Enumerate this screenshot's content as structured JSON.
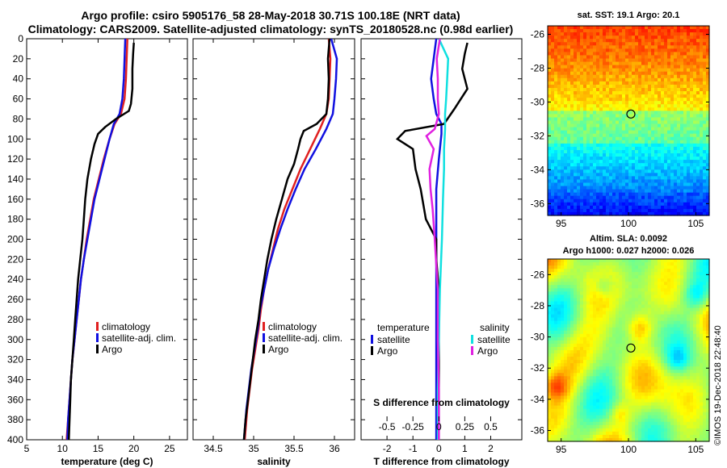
{
  "header": {
    "title_line1": "Argo profile: csiro 5905176_58 28-May-2018 30.71S 100.18E (NRT data)",
    "title_line2": "Climatology: CARS2009. Satellite-adjusted climatology: synTS_20180528.nc (0.98d earlier)"
  },
  "credit": "©IMOS 19-Dec-2018 22:48:40",
  "colors": {
    "climatology": "#e02020",
    "satellite": "#1010e0",
    "argo": "#000000",
    "sat_salinity": "#10e0e0",
    "argo_salinity": "#e020e0"
  },
  "chart_data": [
    {
      "type": "line",
      "id": "temperature",
      "xlabel": "temperature (deg C)",
      "ylabel": "",
      "xlim": [
        5,
        27.5
      ],
      "ylim": [
        400,
        0
      ],
      "xticks": [
        5,
        10,
        15,
        20,
        25
      ],
      "yticks": [
        0,
        20,
        40,
        60,
        80,
        100,
        120,
        140,
        160,
        180,
        200,
        220,
        240,
        260,
        280,
        300,
        320,
        340,
        360,
        380,
        400
      ],
      "legend": [
        "climatology",
        "satellite-adj. clim.",
        "Argo"
      ],
      "series": [
        {
          "name": "climatology",
          "color": "#e02020",
          "points": [
            [
              19.1,
              0
            ],
            [
              19.0,
              20
            ],
            [
              18.9,
              40
            ],
            [
              18.7,
              60
            ],
            [
              18.2,
              75
            ],
            [
              17.3,
              85
            ],
            [
              16.6,
              100
            ],
            [
              15.8,
              120
            ],
            [
              15.1,
              140
            ],
            [
              14.4,
              160
            ],
            [
              13.9,
              180
            ],
            [
              13.4,
              200
            ],
            [
              13.0,
              220
            ],
            [
              12.6,
              240
            ],
            [
              12.3,
              260
            ],
            [
              12.0,
              280
            ],
            [
              11.7,
              300
            ],
            [
              11.4,
              320
            ],
            [
              11.2,
              340
            ],
            [
              11.0,
              360
            ],
            [
              10.8,
              380
            ],
            [
              10.6,
              400
            ]
          ]
        },
        {
          "name": "satellite-adj. clim.",
          "color": "#1010e0",
          "points": [
            [
              18.8,
              0
            ],
            [
              18.7,
              20
            ],
            [
              18.6,
              40
            ],
            [
              18.4,
              60
            ],
            [
              18.0,
              75
            ],
            [
              17.2,
              85
            ],
            [
              16.6,
              100
            ],
            [
              15.9,
              120
            ],
            [
              15.2,
              140
            ],
            [
              14.5,
              160
            ],
            [
              14.0,
              180
            ],
            [
              13.5,
              200
            ],
            [
              13.0,
              220
            ],
            [
              12.6,
              240
            ],
            [
              12.3,
              260
            ],
            [
              12.0,
              280
            ],
            [
              11.7,
              300
            ],
            [
              11.4,
              320
            ],
            [
              11.2,
              340
            ],
            [
              11.0,
              360
            ],
            [
              10.8,
              380
            ],
            [
              10.7,
              400
            ]
          ]
        },
        {
          "name": "Argo",
          "color": "#000000",
          "points": [
            [
              20.0,
              4
            ],
            [
              19.9,
              15
            ],
            [
              19.8,
              30
            ],
            [
              19.8,
              50
            ],
            [
              19.6,
              65
            ],
            [
              19.3,
              72
            ],
            [
              17.5,
              80
            ],
            [
              16.0,
              88
            ],
            [
              15.0,
              95
            ],
            [
              14.5,
              105
            ],
            [
              14.0,
              120
            ],
            [
              13.5,
              140
            ],
            [
              13.2,
              160
            ],
            [
              13.0,
              180
            ],
            [
              12.8,
              200
            ],
            [
              12.5,
              220
            ],
            [
              12.2,
              240
            ],
            [
              12.0,
              260
            ],
            [
              11.8,
              280
            ],
            [
              11.6,
              300
            ],
            [
              11.4,
              320
            ],
            [
              11.2,
              340
            ],
            [
              11.1,
              360
            ],
            [
              11.0,
              380
            ],
            [
              10.9,
              400
            ]
          ]
        }
      ]
    },
    {
      "type": "line",
      "id": "salinity",
      "xlabel": "salinity",
      "ylabel": "",
      "xlim": [
        34.25,
        36.25
      ],
      "ylim": [
        400,
        0
      ],
      "xticks": [
        34.5,
        35,
        35.5,
        36
      ],
      "legend": [
        "climatology",
        "satellite-adj. clim.",
        "Argo"
      ],
      "series": [
        {
          "name": "climatology",
          "color": "#e02020",
          "points": [
            [
              35.93,
              0
            ],
            [
              35.95,
              20
            ],
            [
              35.94,
              40
            ],
            [
              35.93,
              60
            ],
            [
              35.9,
              75
            ],
            [
              35.82,
              90
            ],
            [
              35.7,
              110
            ],
            [
              35.58,
              130
            ],
            [
              35.48,
              150
            ],
            [
              35.38,
              170
            ],
            [
              35.3,
              190
            ],
            [
              35.24,
              210
            ],
            [
              35.18,
              230
            ],
            [
              35.13,
              250
            ],
            [
              35.09,
              270
            ],
            [
              35.06,
              290
            ],
            [
              35.02,
              310
            ],
            [
              34.98,
              330
            ],
            [
              34.95,
              350
            ],
            [
              34.92,
              370
            ],
            [
              34.89,
              400
            ]
          ]
        },
        {
          "name": "satellite-adj. clim.",
          "color": "#1010e0",
          "points": [
            [
              35.96,
              0
            ],
            [
              36.03,
              20
            ],
            [
              36.02,
              40
            ],
            [
              36.0,
              60
            ],
            [
              35.98,
              75
            ],
            [
              35.9,
              90
            ],
            [
              35.77,
              110
            ],
            [
              35.63,
              130
            ],
            [
              35.52,
              150
            ],
            [
              35.42,
              170
            ],
            [
              35.33,
              190
            ],
            [
              35.25,
              210
            ],
            [
              35.18,
              230
            ],
            [
              35.13,
              250
            ],
            [
              35.08,
              270
            ],
            [
              35.05,
              290
            ],
            [
              35.01,
              310
            ],
            [
              34.97,
              330
            ],
            [
              34.94,
              350
            ],
            [
              34.91,
              370
            ],
            [
              34.88,
              400
            ]
          ]
        },
        {
          "name": "Argo",
          "color": "#000000",
          "points": [
            [
              35.94,
              0
            ],
            [
              35.92,
              20
            ],
            [
              35.93,
              40
            ],
            [
              35.92,
              60
            ],
            [
              35.9,
              75
            ],
            [
              35.78,
              85
            ],
            [
              35.62,
              92
            ],
            [
              35.58,
              100
            ],
            [
              35.55,
              110
            ],
            [
              35.5,
              125
            ],
            [
              35.42,
              140
            ],
            [
              35.35,
              160
            ],
            [
              35.28,
              180
            ],
            [
              35.22,
              200
            ],
            [
              35.17,
              220
            ],
            [
              35.13,
              240
            ],
            [
              35.09,
              260
            ],
            [
              35.06,
              280
            ],
            [
              35.02,
              300
            ],
            [
              34.99,
              320
            ],
            [
              34.96,
              340
            ],
            [
              34.93,
              360
            ],
            [
              34.9,
              380
            ],
            [
              34.88,
              400
            ]
          ]
        }
      ]
    },
    {
      "type": "line",
      "id": "difference",
      "xlabel": "T difference from climatology",
      "x2label": "S difference from climatology",
      "xlim": [
        -3,
        3.2
      ],
      "x2lim": [
        -0.75,
        0.8
      ],
      "ylim": [
        400,
        0
      ],
      "xticks": [
        -2,
        -1,
        0,
        1,
        2
      ],
      "x2ticks": [
        -0.5,
        -0.25,
        0,
        0.25,
        0.5
      ],
      "x2ticklabels": [
        "-0.5",
        "-0.25",
        "0",
        "0.25",
        "0.5"
      ],
      "legend_temperature": {
        "title": "temperature",
        "items": [
          "satellite",
          "Argo"
        ]
      },
      "legend_salinity": {
        "title": "salinity",
        "items": [
          "satellite",
          "Argo"
        ]
      },
      "series": [
        {
          "name": "T satellite",
          "color": "#1010e0",
          "axis": "T",
          "points": [
            [
              -0.1,
              0
            ],
            [
              -0.2,
              20
            ],
            [
              -0.3,
              40
            ],
            [
              -0.2,
              60
            ],
            [
              -0.1,
              75
            ],
            [
              0.1,
              85
            ],
            [
              0.1,
              95
            ],
            [
              0.0,
              120
            ],
            [
              -0.1,
              150
            ],
            [
              -0.1,
              200
            ],
            [
              -0.1,
              250
            ],
            [
              -0.1,
              300
            ],
            [
              -0.1,
              350
            ],
            [
              -0.1,
              400
            ]
          ]
        },
        {
          "name": "T Argo",
          "color": "#000000",
          "axis": "T",
          "points": [
            [
              1.1,
              4
            ],
            [
              1.0,
              15
            ],
            [
              0.9,
              30
            ],
            [
              1.1,
              50
            ],
            [
              0.6,
              70
            ],
            [
              0.2,
              85
            ],
            [
              -1.3,
              92
            ],
            [
              -1.6,
              100
            ],
            [
              -1.0,
              110
            ],
            [
              -0.9,
              130
            ],
            [
              -0.7,
              150
            ],
            [
              -0.5,
              180
            ],
            [
              -0.1,
              200
            ],
            [
              -0.1,
              220
            ],
            [
              0.0,
              250
            ],
            [
              0.0,
              300
            ],
            [
              0.0,
              350
            ],
            [
              0.0,
              400
            ]
          ]
        },
        {
          "name": "S satellite",
          "color": "#10e0e0",
          "axis": "S",
          "points": [
            [
              0.0,
              0
            ],
            [
              0.09,
              20
            ],
            [
              0.08,
              40
            ],
            [
              0.07,
              60
            ],
            [
              0.06,
              75
            ],
            [
              0.06,
              90
            ],
            [
              0.05,
              110
            ],
            [
              0.05,
              130
            ],
            [
              0.04,
              160
            ],
            [
              0.03,
              200
            ],
            [
              0.01,
              250
            ],
            [
              0.0,
              300
            ],
            [
              -0.01,
              350
            ],
            [
              -0.01,
              400
            ]
          ]
        },
        {
          "name": "S Argo",
          "color": "#e020e0",
          "axis": "S",
          "points": [
            [
              0.01,
              0
            ],
            [
              -0.02,
              20
            ],
            [
              -0.01,
              40
            ],
            [
              -0.01,
              60
            ],
            [
              0.0,
              75
            ],
            [
              -0.04,
              90
            ],
            [
              -0.12,
              97
            ],
            [
              -0.05,
              110
            ],
            [
              -0.09,
              130
            ],
            [
              -0.08,
              150
            ],
            [
              -0.06,
              170
            ],
            [
              -0.04,
              200
            ],
            [
              -0.01,
              250
            ],
            [
              -0.01,
              300
            ],
            [
              0.0,
              350
            ],
            [
              0.0,
              400
            ]
          ]
        }
      ]
    },
    {
      "type": "heatmap",
      "id": "sst-map",
      "title": "sat. SST: 19.1 Argo: 20.1",
      "xlim": [
        94,
        106
      ],
      "ylim": [
        -36.7,
        -25.5
      ],
      "xticks": [
        95,
        100,
        105
      ],
      "yticks": [
        -26,
        -28,
        -30,
        -32,
        -34,
        -36
      ],
      "marker": {
        "lon": 100.18,
        "lat": -30.71
      }
    },
    {
      "type": "heatmap",
      "id": "sla-map",
      "title": "Altim. SLA: 0.0092",
      "subtitle": "Argo h1000: 0.027 h2000: 0.026",
      "xlim": [
        94,
        106
      ],
      "ylim": [
        -36.7,
        -25.0
      ],
      "xticks": [
        95,
        100,
        105
      ],
      "yticks": [
        -26,
        -28,
        -30,
        -32,
        -34,
        -36
      ],
      "marker": {
        "lon": 100.18,
        "lat": -30.71
      }
    }
  ]
}
